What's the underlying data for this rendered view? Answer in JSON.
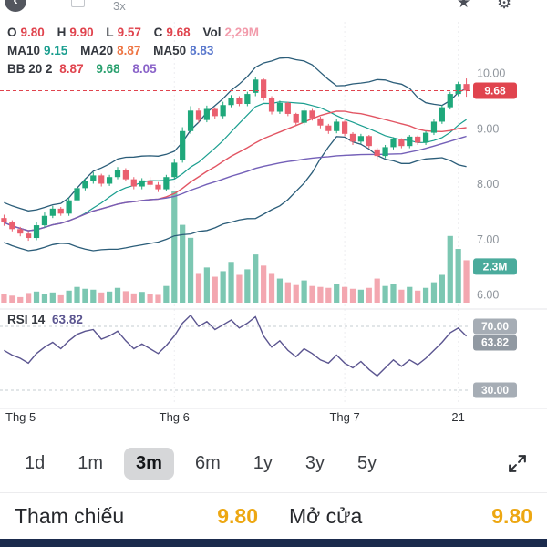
{
  "topbar": {
    "zoom_label": "3x"
  },
  "icons": {
    "back": "‹",
    "star": "★",
    "gear": "⚙",
    "expand": "expand-arrows"
  },
  "legend": {
    "o_label": "O",
    "o_value": "9.80",
    "h_label": "H",
    "h_value": "9.90",
    "l_label": "L",
    "l_value": "9.57",
    "c_label": "C",
    "c_value": "9.68",
    "vol_label": "Vol",
    "vol_value": "2,29M",
    "ma10_label": "MA10",
    "ma10_value": "9.15",
    "ma20_label": "MA20",
    "ma20_value": "8.87",
    "ma50_label": "MA50",
    "ma50_value": "8.83",
    "bb_label": "BB 20 2",
    "bb_mid": "8.87",
    "bb_upper": "9.68",
    "bb_lower": "8.05",
    "rsi_label": "RSI 14",
    "rsi_value": "63.82"
  },
  "axis": {
    "price_ticks": [
      "10.00",
      "9.00",
      "8.00",
      "7.00",
      "6.00"
    ],
    "price_badge": "9.68",
    "volume_badge": "2.3M",
    "rsi_upper": "70.00",
    "rsi_lower": "30.00",
    "rsi_badge": "63.82"
  },
  "timeframes": {
    "items": [
      "1d",
      "1m",
      "3m",
      "6m",
      "1y",
      "3y",
      "5y"
    ],
    "selected": "3m"
  },
  "footer": {
    "ref_label": "Tham chiếu",
    "ref_value": "9.80",
    "open_label": "Mở cửa",
    "open_value": "9.80"
  },
  "colors": {
    "up": "#1fa87b",
    "down": "#ea5f6f",
    "down_strong": "#e0444e",
    "vol_up": "#7cc7b2",
    "vol_down": "#f3a7b0",
    "vol_badge": "#4aab9c",
    "bb": "#2b5d79",
    "ma10": "#1a9e8f",
    "ma20": "#e25563",
    "ma50": "#7460b8",
    "rsi": "#5b5590",
    "accent_value": "#eda712",
    "nav_bar": "#1b2b4d"
  },
  "chart_data": [
    {
      "type": "candlestick",
      "title": "Daily price with MA10/MA20/MA50 and Bollinger Bands (20,2)",
      "last_price": 9.68,
      "ohlc_today": {
        "open": 9.8,
        "high": 9.9,
        "low": 9.57,
        "close": 9.68,
        "volume": "2,29M"
      },
      "indicators": {
        "ma10": 9.15,
        "ma20": 8.87,
        "ma50": 8.83,
        "bb_mid": 8.87,
        "bb_upper": 9.68,
        "bb_lower": 8.05
      },
      "y_ticks": [
        10,
        9,
        8,
        7,
        6
      ],
      "ylim": [
        5.9,
        10.2
      ],
      "x_axis_labels": [
        "Thg 5",
        "Thg 6",
        "Thg 7",
        "21"
      ],
      "x_label_indices": [
        0,
        21,
        42,
        56
      ],
      "open": [
        7.38,
        7.3,
        7.18,
        7.1,
        7.02,
        7.25,
        7.42,
        7.55,
        7.46,
        7.7,
        7.92,
        8.05,
        8.15,
        8.0,
        8.12,
        8.25,
        8.08,
        7.95,
        8.06,
        7.98,
        7.9,
        8.12,
        8.42,
        8.95,
        9.32,
        9.15,
        9.35,
        9.22,
        9.42,
        9.55,
        9.44,
        9.64,
        9.88,
        9.55,
        9.3,
        9.46,
        9.26,
        9.1,
        9.32,
        9.18,
        9.05,
        8.95,
        9.12,
        8.9,
        8.76,
        8.86,
        8.62,
        8.5,
        8.66,
        8.8,
        8.68,
        8.85,
        8.74,
        8.92,
        9.12,
        9.38,
        9.62,
        9.8
      ],
      "high": [
        7.44,
        7.34,
        7.22,
        7.14,
        7.3,
        7.48,
        7.6,
        7.58,
        7.75,
        7.97,
        8.1,
        8.21,
        8.18,
        8.16,
        8.3,
        8.28,
        8.12,
        8.1,
        8.12,
        8.03,
        8.16,
        8.45,
        9.02,
        9.4,
        9.36,
        9.41,
        9.38,
        9.48,
        9.6,
        9.58,
        9.66,
        9.92,
        9.9,
        9.58,
        9.5,
        9.48,
        9.28,
        9.36,
        9.35,
        9.21,
        9.08,
        9.16,
        9.14,
        8.93,
        8.9,
        8.88,
        8.65,
        8.7,
        8.84,
        8.82,
        8.88,
        8.87,
        8.95,
        9.16,
        9.42,
        9.66,
        9.84,
        9.9
      ],
      "low": [
        7.24,
        7.14,
        7.05,
        6.97,
        6.98,
        7.21,
        7.38,
        7.42,
        7.42,
        7.66,
        7.88,
        8.0,
        7.95,
        7.96,
        8.08,
        8.04,
        7.9,
        7.9,
        7.94,
        7.85,
        7.86,
        8.08,
        8.38,
        8.9,
        9.1,
        9.11,
        9.17,
        9.18,
        9.38,
        9.4,
        9.4,
        9.58,
        9.5,
        9.25,
        9.26,
        9.22,
        9.05,
        9.06,
        9.14,
        9.0,
        8.9,
        8.91,
        8.86,
        8.7,
        8.72,
        8.64,
        8.44,
        8.46,
        8.62,
        8.64,
        8.64,
        8.7,
        8.7,
        8.88,
        9.08,
        9.34,
        9.58,
        9.57
      ],
      "close": [
        7.3,
        7.18,
        7.1,
        7.02,
        7.25,
        7.42,
        7.55,
        7.46,
        7.7,
        7.92,
        8.05,
        8.15,
        8.0,
        8.12,
        8.25,
        8.08,
        7.95,
        8.06,
        7.98,
        7.9,
        8.12,
        8.38,
        8.95,
        9.32,
        9.15,
        9.35,
        9.22,
        9.42,
        9.55,
        9.44,
        9.62,
        9.88,
        9.55,
        9.3,
        9.46,
        9.26,
        9.1,
        9.32,
        9.18,
        9.05,
        8.95,
        9.12,
        8.9,
        8.76,
        8.86,
        8.68,
        8.5,
        8.66,
        8.8,
        8.68,
        8.85,
        8.74,
        8.92,
        9.12,
        9.38,
        9.62,
        9.8,
        9.68
      ],
      "volume": [
        0.45,
        0.38,
        0.3,
        0.52,
        0.6,
        0.48,
        0.55,
        0.4,
        0.65,
        0.85,
        0.75,
        0.7,
        0.55,
        0.6,
        0.8,
        0.62,
        0.5,
        0.58,
        0.45,
        0.42,
        0.9,
        6.0,
        4.2,
        3.5,
        1.6,
        1.9,
        1.4,
        1.7,
        2.2,
        1.5,
        1.8,
        2.6,
        2.0,
        1.6,
        1.3,
        1.1,
        0.95,
        1.2,
        0.9,
        0.85,
        0.8,
        1.0,
        0.85,
        0.75,
        0.7,
        0.8,
        1.3,
        0.9,
        1.0,
        0.7,
        0.85,
        0.65,
        0.8,
        1.1,
        1.5,
        3.6,
        2.9,
        2.29
      ]
    },
    {
      "type": "line",
      "name": "RSI 14",
      "last": 63.82,
      "gridlines": [
        70,
        30
      ],
      "ylim": [
        20,
        85
      ],
      "values": [
        55,
        52,
        50,
        47,
        53,
        57,
        60,
        56,
        61,
        65,
        67,
        68,
        62,
        64,
        67,
        61,
        56,
        59,
        56,
        53,
        58,
        64,
        72,
        77,
        70,
        73,
        68,
        71,
        74,
        69,
        72,
        76,
        64,
        57,
        61,
        55,
        51,
        56,
        53,
        49,
        47,
        52,
        47,
        44,
        48,
        43,
        39,
        44,
        49,
        45,
        49,
        46,
        50,
        55,
        60,
        66,
        69,
        63.82
      ]
    }
  ]
}
